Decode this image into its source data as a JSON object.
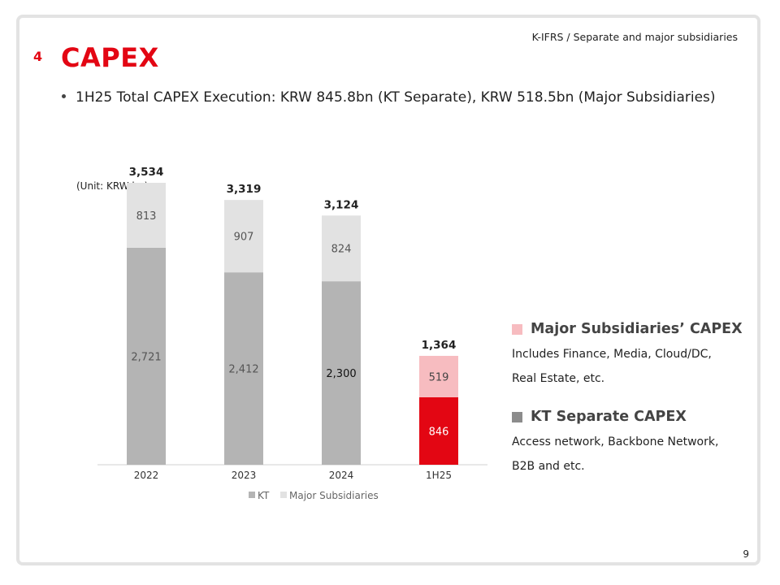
{
  "header": {
    "note": "K-IFRS / Separate and major subsidiaries",
    "section_number": "4",
    "title": "CAPEX",
    "bullet": "1H25 Total CAPEX Execution: KRW 845.8bn (KT Separate), KRW 518.5bn (Major Subsidiaries)"
  },
  "unit_label": "(Unit: KRW bn)",
  "chart_data": {
    "type": "bar",
    "stacked": true,
    "categories": [
      "2022",
      "2023",
      "2024",
      "1H25"
    ],
    "series": [
      {
        "name": "KT",
        "values": [
          2721,
          2412,
          2300,
          846
        ],
        "labels": [
          "2,721",
          "2,412",
          "2,300",
          "846"
        ]
      },
      {
        "name": "Major Subsidiaries",
        "values": [
          813,
          907,
          824,
          519
        ],
        "labels": [
          "813",
          "907",
          "824",
          "519"
        ]
      }
    ],
    "totals": [
      3534,
      3319,
      3124,
      1364
    ],
    "total_labels": [
      "3,534",
      "3,319",
      "3,124",
      "1,364"
    ],
    "ylim": [
      0,
      4400
    ],
    "grid": false,
    "legend": "bottom-center",
    "colors": {
      "kt": "#b4b4b4",
      "subs": "#e2e2e2",
      "kt_highlight": "#e30613",
      "subs_highlight": "#f7bcc0",
      "axis": "#d0d0d0"
    }
  },
  "legend_panel": {
    "subs_title": "Major Subsidiaries’ CAPEX",
    "subs_desc": "Includes Finance, Media, Cloud/DC, Real Estate, etc.",
    "kt_title": "KT Separate CAPEX",
    "kt_desc": "Access network, Backbone Network, B2B and etc.",
    "subs_color": "#f7bcc0",
    "kt_color": "#8c8c8c"
  },
  "page_number": "9"
}
